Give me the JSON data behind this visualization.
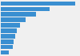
{
  "values": [
    95,
    62,
    45,
    32,
    24,
    20,
    18,
    16,
    15,
    10
  ],
  "bar_color": "#3a8fd1",
  "background_color": "#f0f0f0",
  "plot_bg_color": "#f0f0f0",
  "grid_color": "#d0d0d0",
  "bar_height": 0.75
}
